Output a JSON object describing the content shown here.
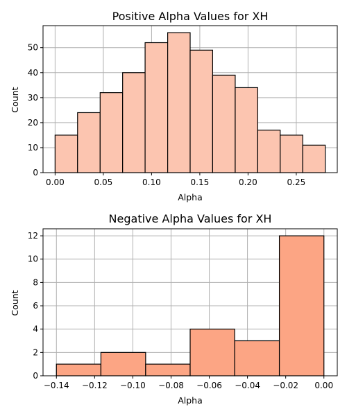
{
  "chart_data": [
    {
      "type": "bar",
      "title": "Positive Alpha Values for XH",
      "xlabel": "Alpha",
      "ylabel": "Count",
      "bar_color": "#fcc5b0",
      "xlim": [
        -0.0125,
        0.2925
      ],
      "ylim": [
        0,
        58.8
      ],
      "xticks": [
        0.0,
        0.05,
        0.1,
        0.15,
        0.2,
        0.25
      ],
      "xtick_labels": [
        "0.00",
        "0.05",
        "0.10",
        "0.15",
        "0.20",
        "0.25"
      ],
      "yticks": [
        0,
        10,
        20,
        30,
        40,
        50
      ],
      "ytick_labels": [
        "0",
        "10",
        "20",
        "30",
        "40",
        "50"
      ],
      "grid": true,
      "bin_edges": [
        0.0,
        0.0233,
        0.0467,
        0.07,
        0.0933,
        0.1167,
        0.14,
        0.1633,
        0.1867,
        0.21,
        0.2333,
        0.2567,
        0.28
      ],
      "values": [
        15,
        24,
        32,
        40,
        52,
        56,
        49,
        39,
        34,
        17,
        15,
        11
      ]
    },
    {
      "type": "bar",
      "title": "Negative Alpha Values for XH",
      "xlabel": "Alpha",
      "ylabel": "Count",
      "bar_color": "#fca584",
      "xlim": [
        -0.147,
        0.007
      ],
      "ylim": [
        0,
        12.6
      ],
      "xticks": [
        -0.14,
        -0.12,
        -0.1,
        -0.08,
        -0.06,
        -0.04,
        -0.02,
        0.0
      ],
      "xtick_labels": [
        "−0.14",
        "−0.12",
        "−0.10",
        "−0.08",
        "−0.06",
        "−0.04",
        "−0.02",
        "0.00"
      ],
      "yticks": [
        0,
        2,
        4,
        6,
        8,
        10,
        12
      ],
      "ytick_labels": [
        "0",
        "2",
        "4",
        "6",
        "8",
        "10",
        "12"
      ],
      "grid": true,
      "bin_edges": [
        -0.14,
        -0.1167,
        -0.0933,
        -0.07,
        -0.0467,
        -0.0233,
        0.0
      ],
      "values": [
        1,
        2,
        1,
        4,
        3,
        12
      ]
    }
  ]
}
